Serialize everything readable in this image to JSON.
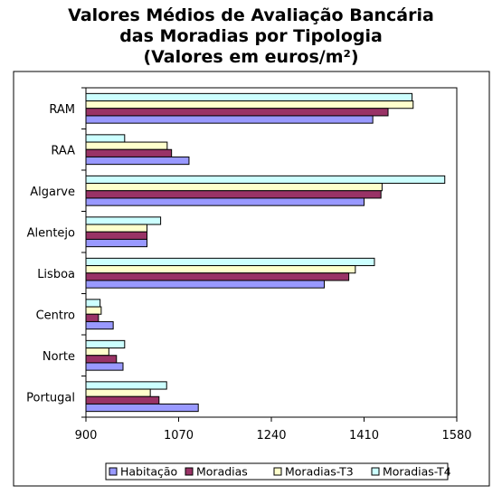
{
  "title": {
    "line1": "Valores Médios de Avaliação Bancária",
    "line2": "das Moradias por Tipologia",
    "line3": "(Valores em euros/m²)"
  },
  "chart_data": {
    "type": "bar",
    "orientation": "horizontal",
    "categories": [
      "RAM",
      "RAA",
      "Algarve",
      "Alentejo",
      "Lisboa",
      "Centro",
      "Norte",
      "Portugal"
    ],
    "series": [
      {
        "name": "Habitação",
        "color": "#9999ff",
        "values": [
          1426,
          1089,
          1410,
          1012,
          1337,
          950,
          968,
          1106
        ]
      },
      {
        "name": "Moradias",
        "color": "#993366",
        "values": [
          1454,
          1057,
          1441,
          1012,
          1382,
          923,
          956,
          1034
        ]
      },
      {
        "name": "Moradias-T3",
        "color": "#ffffcc",
        "values": [
          1500,
          1049,
          1443,
          1012,
          1394,
          928,
          942,
          1018
        ]
      },
      {
        "name": "Moradias-T4",
        "color": "#ccffff",
        "values": [
          1498,
          971,
          1558,
          1037,
          1429,
          926,
          971,
          1048
        ]
      }
    ],
    "xlim": [
      900,
      1580
    ],
    "xticks": [
      "900",
      "1070",
      "1240",
      "1410",
      "1580"
    ],
    "xlabel": "",
    "ylabel": "",
    "legend_position": "bottom",
    "grid": false
  }
}
